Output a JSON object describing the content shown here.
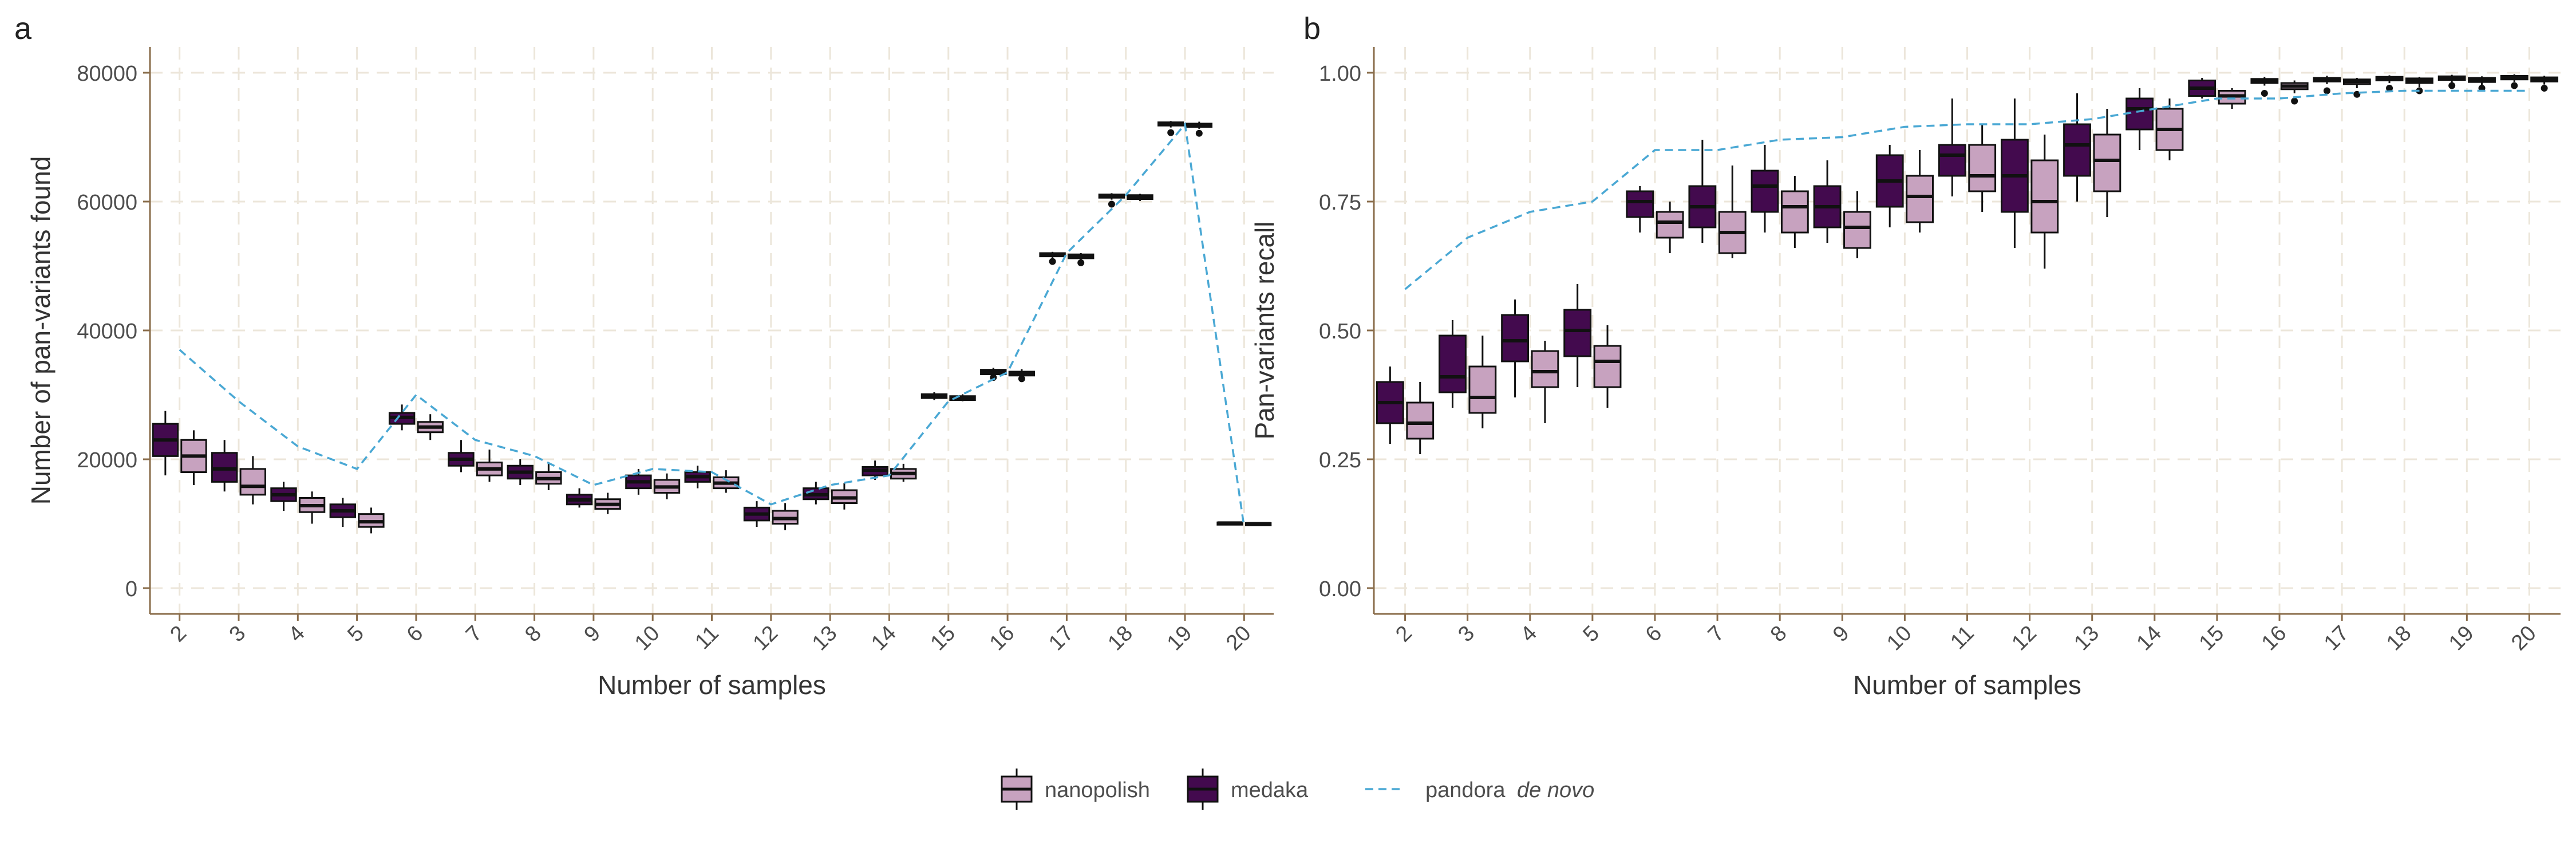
{
  "panels": [
    {
      "letter": "a"
    },
    {
      "letter": "b"
    }
  ],
  "legend": {
    "nanopolish": "nanopolish",
    "medaka": "medaka",
    "pandora_prefix": "pandora ",
    "pandora_italic": "de novo"
  },
  "colors": {
    "nanopolish": "#c7a2bf",
    "medaka": "#430a4e",
    "line": "#4aa8d4",
    "grid": "#ece6da",
    "axis": "#8a6d4b",
    "box_edge": "#111111"
  },
  "chart_data": [
    {
      "type": "box",
      "panel": "a",
      "xlabel": "Number of samples",
      "ylabel": "Number of pan-variants found",
      "ylim": [
        -4000,
        84000
      ],
      "yticks": [
        0,
        20000,
        40000,
        60000,
        80000
      ],
      "categories": [
        "2",
        "3",
        "4",
        "5",
        "6",
        "7",
        "8",
        "9",
        "10",
        "11",
        "12",
        "13",
        "14",
        "15",
        "16",
        "17",
        "18",
        "19",
        "20"
      ],
      "grid": true,
      "series": [
        {
          "name": "medaka",
          "boxes": [
            {
              "x": "2",
              "q1": 20500,
              "med": 23000,
              "q3": 25500,
              "lo": 17500,
              "hi": 27500
            },
            {
              "x": "3",
              "q1": 16500,
              "med": 18500,
              "q3": 21000,
              "lo": 15000,
              "hi": 23000
            },
            {
              "x": "4",
              "q1": 13500,
              "med": 14500,
              "q3": 15500,
              "lo": 12000,
              "hi": 16500
            },
            {
              "x": "5",
              "q1": 11000,
              "med": 12000,
              "q3": 13000,
              "lo": 9500,
              "hi": 14000
            },
            {
              "x": "6",
              "q1": 25500,
              "med": 26500,
              "q3": 27200,
              "lo": 24500,
              "hi": 28500
            },
            {
              "x": "7",
              "q1": 19000,
              "med": 20000,
              "q3": 21000,
              "lo": 18000,
              "hi": 23000
            },
            {
              "x": "8",
              "q1": 17000,
              "med": 18000,
              "q3": 19000,
              "lo": 16000,
              "hi": 20000
            },
            {
              "x": "9",
              "q1": 13000,
              "med": 13700,
              "q3": 14500,
              "lo": 12500,
              "hi": 15500
            },
            {
              "x": "10",
              "q1": 15500,
              "med": 16500,
              "q3": 17500,
              "lo": 14500,
              "hi": 18500
            },
            {
              "x": "11",
              "q1": 16500,
              "med": 17300,
              "q3": 18000,
              "lo": 15500,
              "hi": 19000
            },
            {
              "x": "12",
              "q1": 10500,
              "med": 11500,
              "q3": 12500,
              "lo": 9500,
              "hi": 13500
            },
            {
              "x": "13",
              "q1": 13800,
              "med": 14500,
              "q3": 15500,
              "lo": 13000,
              "hi": 16500
            },
            {
              "x": "14",
              "q1": 17500,
              "med": 18300,
              "q3": 18800,
              "lo": 16800,
              "hi": 19800
            },
            {
              "x": "15",
              "q1": 29500,
              "med": 29800,
              "q3": 30100,
              "lo": 29200,
              "hi": 30400
            },
            {
              "x": "16",
              "q1": 33200,
              "med": 33600,
              "q3": 33900,
              "lo": 32800,
              "hi": 34200,
              "outliers": [
                32700
              ]
            },
            {
              "x": "17",
              "q1": 51500,
              "med": 51800,
              "q3": 52000,
              "lo": 51200,
              "hi": 52200,
              "outliers": [
                50700
              ]
            },
            {
              "x": "18",
              "q1": 60600,
              "med": 60900,
              "q3": 61100,
              "lo": 60300,
              "hi": 61300,
              "outliers": [
                59600
              ]
            },
            {
              "x": "19",
              "q1": 71800,
              "med": 72000,
              "q3": 72300,
              "lo": 71500,
              "hi": 72500,
              "outliers": [
                70700
              ]
            },
            {
              "x": "20",
              "q1": 10000,
              "med": 10100,
              "q3": 10200,
              "lo": 9900,
              "hi": 10300
            }
          ]
        },
        {
          "name": "nanopolish",
          "boxes": [
            {
              "x": "2",
              "q1": 18000,
              "med": 20500,
              "q3": 23000,
              "lo": 16000,
              "hi": 24500
            },
            {
              "x": "3",
              "q1": 14500,
              "med": 15800,
              "q3": 18500,
              "lo": 13000,
              "hi": 20500
            },
            {
              "x": "4",
              "q1": 11800,
              "med": 12800,
              "q3": 14000,
              "lo": 10000,
              "hi": 15000
            },
            {
              "x": "5",
              "q1": 9500,
              "med": 10300,
              "q3": 11500,
              "lo": 8500,
              "hi": 12500
            },
            {
              "x": "6",
              "q1": 24200,
              "med": 25000,
              "q3": 25800,
              "lo": 23000,
              "hi": 27000
            },
            {
              "x": "7",
              "q1": 17500,
              "med": 18500,
              "q3": 19500,
              "lo": 16500,
              "hi": 21500
            },
            {
              "x": "8",
              "q1": 16200,
              "med": 17000,
              "q3": 18000,
              "lo": 15200,
              "hi": 19500
            },
            {
              "x": "9",
              "q1": 12300,
              "med": 13000,
              "q3": 13800,
              "lo": 11500,
              "hi": 14800
            },
            {
              "x": "10",
              "q1": 14800,
              "med": 15700,
              "q3": 16800,
              "lo": 13800,
              "hi": 17800
            },
            {
              "x": "11",
              "q1": 15500,
              "med": 16300,
              "q3": 17200,
              "lo": 14800,
              "hi": 18300
            },
            {
              "x": "12",
              "q1": 10000,
              "med": 10800,
              "q3": 12000,
              "lo": 9000,
              "hi": 13200
            },
            {
              "x": "13",
              "q1": 13200,
              "med": 14000,
              "q3": 15200,
              "lo": 12200,
              "hi": 16300
            },
            {
              "x": "14",
              "q1": 17000,
              "med": 17800,
              "q3": 18500,
              "lo": 16500,
              "hi": 19300
            },
            {
              "x": "15",
              "q1": 29200,
              "med": 29500,
              "q3": 29800,
              "lo": 29000,
              "hi": 30100
            },
            {
              "x": "16",
              "q1": 33000,
              "med": 33300,
              "q3": 33600,
              "lo": 32700,
              "hi": 34000,
              "outliers": [
                32500
              ]
            },
            {
              "x": "17",
              "q1": 51200,
              "med": 51500,
              "q3": 51800,
              "lo": 51000,
              "hi": 52000,
              "outliers": [
                50500
              ]
            },
            {
              "x": "18",
              "q1": 60400,
              "med": 60700,
              "q3": 61000,
              "lo": 60100,
              "hi": 61200
            },
            {
              "x": "19",
              "q1": 71600,
              "med": 71900,
              "q3": 72100,
              "lo": 71300,
              "hi": 72400,
              "outliers": [
                70600
              ]
            },
            {
              "x": "20",
              "q1": 9900,
              "med": 10000,
              "q3": 10100,
              "lo": 9800,
              "hi": 10200
            }
          ]
        },
        {
          "name": "pandora de novo",
          "type": "line",
          "values": [
            37000,
            29000,
            22000,
            18500,
            30000,
            23000,
            20500,
            16000,
            18500,
            18000,
            13000,
            16000,
            17500,
            29000,
            33500,
            52000,
            61000,
            72000,
            9500
          ]
        }
      ]
    },
    {
      "type": "box",
      "panel": "b",
      "xlabel": "Number of samples",
      "ylabel": "Pan-variants recall",
      "ylim": [
        -0.05,
        1.05
      ],
      "yticks": [
        0.0,
        0.25,
        0.5,
        0.75,
        1.0
      ],
      "ytick_labels": [
        "0.00",
        "0.25",
        "0.50",
        "0.75",
        "1.00"
      ],
      "categories": [
        "2",
        "3",
        "4",
        "5",
        "6",
        "7",
        "8",
        "9",
        "10",
        "11",
        "12",
        "13",
        "14",
        "15",
        "16",
        "17",
        "18",
        "19",
        "20"
      ],
      "grid": true,
      "series": [
        {
          "name": "medaka",
          "boxes": [
            {
              "x": "2",
              "q1": 0.32,
              "med": 0.36,
              "q3": 0.4,
              "lo": 0.28,
              "hi": 0.43
            },
            {
              "x": "3",
              "q1": 0.38,
              "med": 0.41,
              "q3": 0.49,
              "lo": 0.35,
              "hi": 0.52
            },
            {
              "x": "4",
              "q1": 0.44,
              "med": 0.48,
              "q3": 0.53,
              "lo": 0.37,
              "hi": 0.56
            },
            {
              "x": "5",
              "q1": 0.45,
              "med": 0.5,
              "q3": 0.54,
              "lo": 0.39,
              "hi": 0.59
            },
            {
              "x": "6",
              "q1": 0.72,
              "med": 0.75,
              "q3": 0.77,
              "lo": 0.69,
              "hi": 0.78
            },
            {
              "x": "7",
              "q1": 0.7,
              "med": 0.74,
              "q3": 0.78,
              "lo": 0.67,
              "hi": 0.87
            },
            {
              "x": "8",
              "q1": 0.73,
              "med": 0.78,
              "q3": 0.81,
              "lo": 0.69,
              "hi": 0.86
            },
            {
              "x": "9",
              "q1": 0.7,
              "med": 0.74,
              "q3": 0.78,
              "lo": 0.67,
              "hi": 0.83
            },
            {
              "x": "10",
              "q1": 0.74,
              "med": 0.79,
              "q3": 0.84,
              "lo": 0.7,
              "hi": 0.86
            },
            {
              "x": "11",
              "q1": 0.8,
              "med": 0.84,
              "q3": 0.86,
              "lo": 0.76,
              "hi": 0.95
            },
            {
              "x": "12",
              "q1": 0.73,
              "med": 0.8,
              "q3": 0.87,
              "lo": 0.66,
              "hi": 0.95
            },
            {
              "x": "13",
              "q1": 0.8,
              "med": 0.86,
              "q3": 0.9,
              "lo": 0.75,
              "hi": 0.96
            },
            {
              "x": "14",
              "q1": 0.89,
              "med": 0.93,
              "q3": 0.95,
              "lo": 0.85,
              "hi": 0.97
            },
            {
              "x": "15",
              "q1": 0.955,
              "med": 0.97,
              "q3": 0.985,
              "lo": 0.95,
              "hi": 0.99
            },
            {
              "x": "16",
              "q1": 0.98,
              "med": 0.984,
              "q3": 0.988,
              "lo": 0.975,
              "hi": 0.992,
              "outliers": [
                0.96
              ]
            },
            {
              "x": "17",
              "q1": 0.983,
              "med": 0.987,
              "q3": 0.99,
              "lo": 0.978,
              "hi": 0.994,
              "outliers": [
                0.965
              ]
            },
            {
              "x": "18",
              "q1": 0.985,
              "med": 0.989,
              "q3": 0.992,
              "lo": 0.98,
              "hi": 0.995,
              "outliers": [
                0.97
              ]
            },
            {
              "x": "19",
              "q1": 0.986,
              "med": 0.99,
              "q3": 0.993,
              "lo": 0.98,
              "hi": 0.996,
              "outliers": [
                0.975
              ]
            },
            {
              "x": "20",
              "q1": 0.987,
              "med": 0.991,
              "q3": 0.994,
              "lo": 0.982,
              "hi": 0.997,
              "outliers": [
                0.975
              ]
            }
          ]
        },
        {
          "name": "nanopolish",
          "boxes": [
            {
              "x": "2",
              "q1": 0.29,
              "med": 0.32,
              "q3": 0.36,
              "lo": 0.26,
              "hi": 0.4
            },
            {
              "x": "3",
              "q1": 0.34,
              "med": 0.37,
              "q3": 0.43,
              "lo": 0.31,
              "hi": 0.49
            },
            {
              "x": "4",
              "q1": 0.39,
              "med": 0.42,
              "q3": 0.46,
              "lo": 0.32,
              "hi": 0.48
            },
            {
              "x": "5",
              "q1": 0.39,
              "med": 0.44,
              "q3": 0.47,
              "lo": 0.35,
              "hi": 0.51
            },
            {
              "x": "6",
              "q1": 0.68,
              "med": 0.71,
              "q3": 0.73,
              "lo": 0.65,
              "hi": 0.75
            },
            {
              "x": "7",
              "q1": 0.65,
              "med": 0.69,
              "q3": 0.73,
              "lo": 0.64,
              "hi": 0.82
            },
            {
              "x": "8",
              "q1": 0.69,
              "med": 0.74,
              "q3": 0.77,
              "lo": 0.66,
              "hi": 0.8
            },
            {
              "x": "9",
              "q1": 0.66,
              "med": 0.7,
              "q3": 0.73,
              "lo": 0.64,
              "hi": 0.77
            },
            {
              "x": "10",
              "q1": 0.71,
              "med": 0.76,
              "q3": 0.8,
              "lo": 0.69,
              "hi": 0.85
            },
            {
              "x": "11",
              "q1": 0.77,
              "med": 0.8,
              "q3": 0.86,
              "lo": 0.73,
              "hi": 0.9
            },
            {
              "x": "12",
              "q1": 0.69,
              "med": 0.75,
              "q3": 0.83,
              "lo": 0.62,
              "hi": 0.88
            },
            {
              "x": "13",
              "q1": 0.77,
              "med": 0.83,
              "q3": 0.88,
              "lo": 0.72,
              "hi": 0.93
            },
            {
              "x": "14",
              "q1": 0.85,
              "med": 0.89,
              "q3": 0.93,
              "lo": 0.83,
              "hi": 0.95
            },
            {
              "x": "15",
              "q1": 0.94,
              "med": 0.955,
              "q3": 0.965,
              "lo": 0.93,
              "hi": 0.97
            },
            {
              "x": "16",
              "q1": 0.968,
              "med": 0.974,
              "q3": 0.98,
              "lo": 0.96,
              "hi": 0.985,
              "outliers": [
                0.945
              ]
            },
            {
              "x": "17",
              "q1": 0.978,
              "med": 0.983,
              "q3": 0.987,
              "lo": 0.97,
              "hi": 0.99,
              "outliers": [
                0.958
              ]
            },
            {
              "x": "18",
              "q1": 0.98,
              "med": 0.985,
              "q3": 0.989,
              "lo": 0.972,
              "hi": 0.992,
              "outliers": [
                0.965
              ]
            },
            {
              "x": "19",
              "q1": 0.982,
              "med": 0.986,
              "q3": 0.99,
              "lo": 0.975,
              "hi": 0.993,
              "outliers": [
                0.97
              ]
            },
            {
              "x": "20",
              "q1": 0.983,
              "med": 0.987,
              "q3": 0.991,
              "lo": 0.977,
              "hi": 0.994,
              "outliers": [
                0.97
              ]
            }
          ]
        },
        {
          "name": "pandora de novo",
          "type": "line",
          "values": [
            0.58,
            0.68,
            0.73,
            0.75,
            0.85,
            0.85,
            0.87,
            0.875,
            0.895,
            0.9,
            0.9,
            0.91,
            0.93,
            0.95,
            0.95,
            0.96,
            0.965,
            0.965,
            0.965
          ]
        }
      ]
    }
  ]
}
